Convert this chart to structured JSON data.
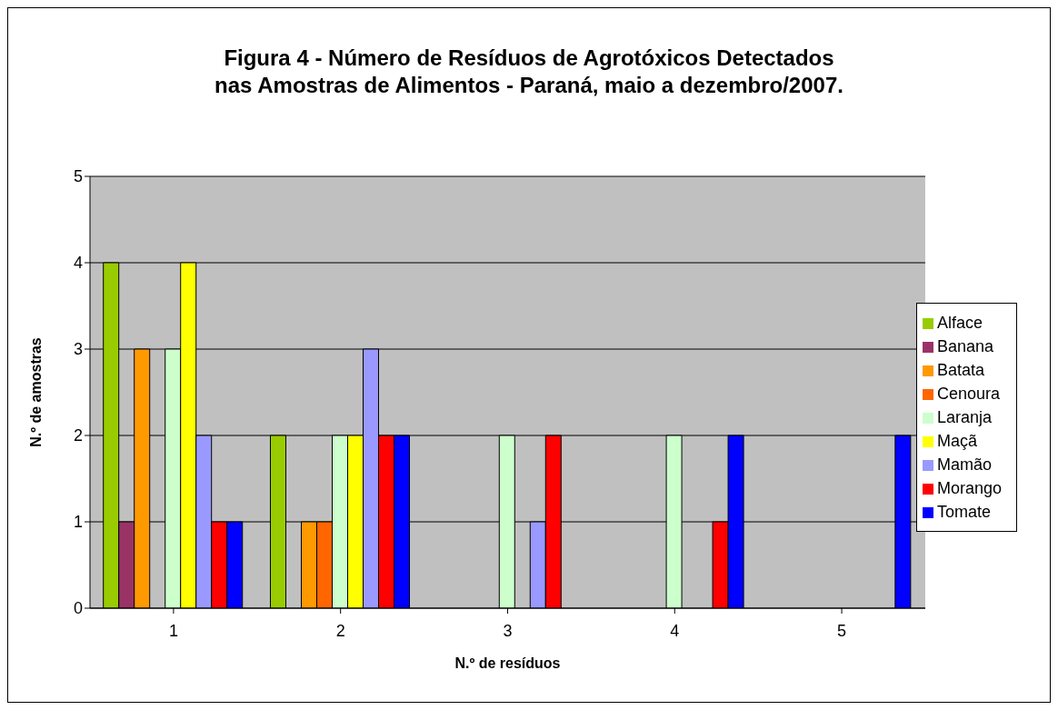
{
  "chart_data": {
    "type": "bar",
    "title": "Figura 4 - Número de Resíduos de Agrotóxicos Detectados\nnas Amostras de Alimentos - Paraná, maio a dezembro/2007.",
    "xlabel": "N.º de resíduos",
    "ylabel": "N.º de amostras",
    "categories": [
      "1",
      "2",
      "3",
      "4",
      "5"
    ],
    "series": [
      {
        "name": "Alface",
        "color": "#99cc00",
        "values": [
          4,
          2,
          0,
          0,
          0
        ]
      },
      {
        "name": "Banana",
        "color": "#993366",
        "values": [
          1,
          0,
          0,
          0,
          0
        ]
      },
      {
        "name": "Batata",
        "color": "#ff9900",
        "values": [
          3,
          1,
          0,
          0,
          0
        ]
      },
      {
        "name": "Cenoura",
        "color": "#ff6600",
        "values": [
          0,
          1,
          0,
          0,
          0
        ]
      },
      {
        "name": "Laranja",
        "color": "#ccffcc",
        "values": [
          3,
          2,
          2,
          2,
          0
        ]
      },
      {
        "name": "Maçã",
        "color": "#ffff00",
        "values": [
          4,
          2,
          0,
          0,
          0
        ]
      },
      {
        "name": "Mamão",
        "color": "#9999ff",
        "values": [
          2,
          3,
          1,
          0,
          0
        ]
      },
      {
        "name": "Morango",
        "color": "#ff0000",
        "values": [
          1,
          2,
          2,
          1,
          0
        ]
      },
      {
        "name": "Tomate",
        "color": "#0000ff",
        "values": [
          1,
          2,
          0,
          2,
          2
        ]
      }
    ],
    "ylim": [
      0,
      5
    ],
    "yticks": [
      0,
      1,
      2,
      3,
      4,
      5
    ],
    "grid": "y",
    "legend": "right"
  }
}
